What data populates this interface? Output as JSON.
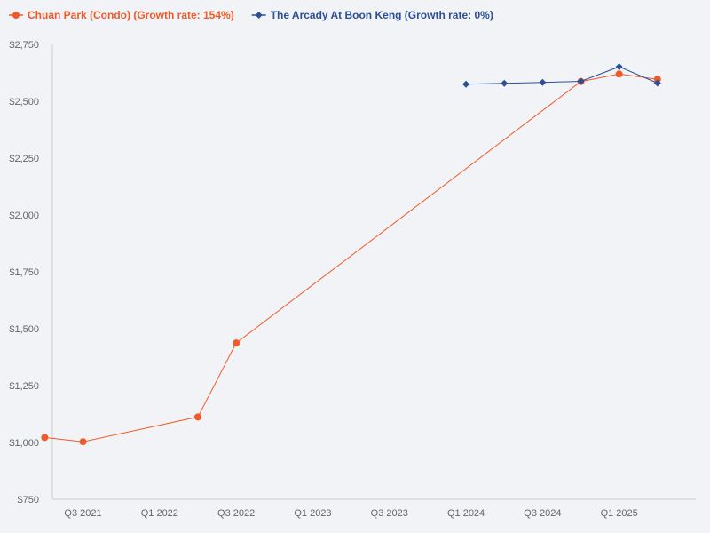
{
  "chart_data": {
    "type": "line",
    "title": "",
    "xlabel": "",
    "ylabel": "",
    "ylim": [
      750,
      2750
    ],
    "y_ticks": [
      750,
      1000,
      1250,
      1500,
      1750,
      2000,
      2250,
      2500,
      2750
    ],
    "y_tick_labels": [
      "$750",
      "$1,000",
      "$1,250",
      "$1,500",
      "$1,750",
      "$2,000",
      "$2,250",
      "$2,500",
      "$2,750"
    ],
    "x_range_quarters": [
      2021.3,
      2025.5
    ],
    "x_ticks": [
      {
        "label": "Q3 2021",
        "q": 2021.5
      },
      {
        "label": "Q1 2022",
        "q": 2022.0
      },
      {
        "label": "Q3 2022",
        "q": 2022.5
      },
      {
        "label": "Q1 2023",
        "q": 2023.0
      },
      {
        "label": "Q3 2023",
        "q": 2023.5
      },
      {
        "label": "Q1 2024",
        "q": 2024.0
      },
      {
        "label": "Q3 2024",
        "q": 2024.5
      },
      {
        "label": "Q1 2025",
        "q": 2025.0
      }
    ],
    "series": [
      {
        "name": "Chuan Park (Condo) (Growth rate: 154%)",
        "color": "#f05a28",
        "marker": "circle",
        "points": [
          {
            "q": 2021.25,
            "y": 1022
          },
          {
            "q": 2021.5,
            "y": 1003
          },
          {
            "q": 2022.25,
            "y": 1112
          },
          {
            "q": 2022.5,
            "y": 1437
          },
          {
            "q": 2024.75,
            "y": 2587
          },
          {
            "q": 2025.0,
            "y": 2620
          },
          {
            "q": 2025.25,
            "y": 2597
          }
        ]
      },
      {
        "name": "The Arcady At Boon Keng (Growth rate: 0%)",
        "color": "#2b5096",
        "marker": "diamond",
        "points": [
          {
            "q": 2024.0,
            "y": 2575
          },
          {
            "q": 2024.25,
            "y": 2579
          },
          {
            "q": 2024.5,
            "y": 2583
          },
          {
            "q": 2024.75,
            "y": 2588
          },
          {
            "q": 2025.0,
            "y": 2652
          },
          {
            "q": 2025.25,
            "y": 2580
          }
        ]
      }
    ],
    "legend_position": "top-left"
  }
}
